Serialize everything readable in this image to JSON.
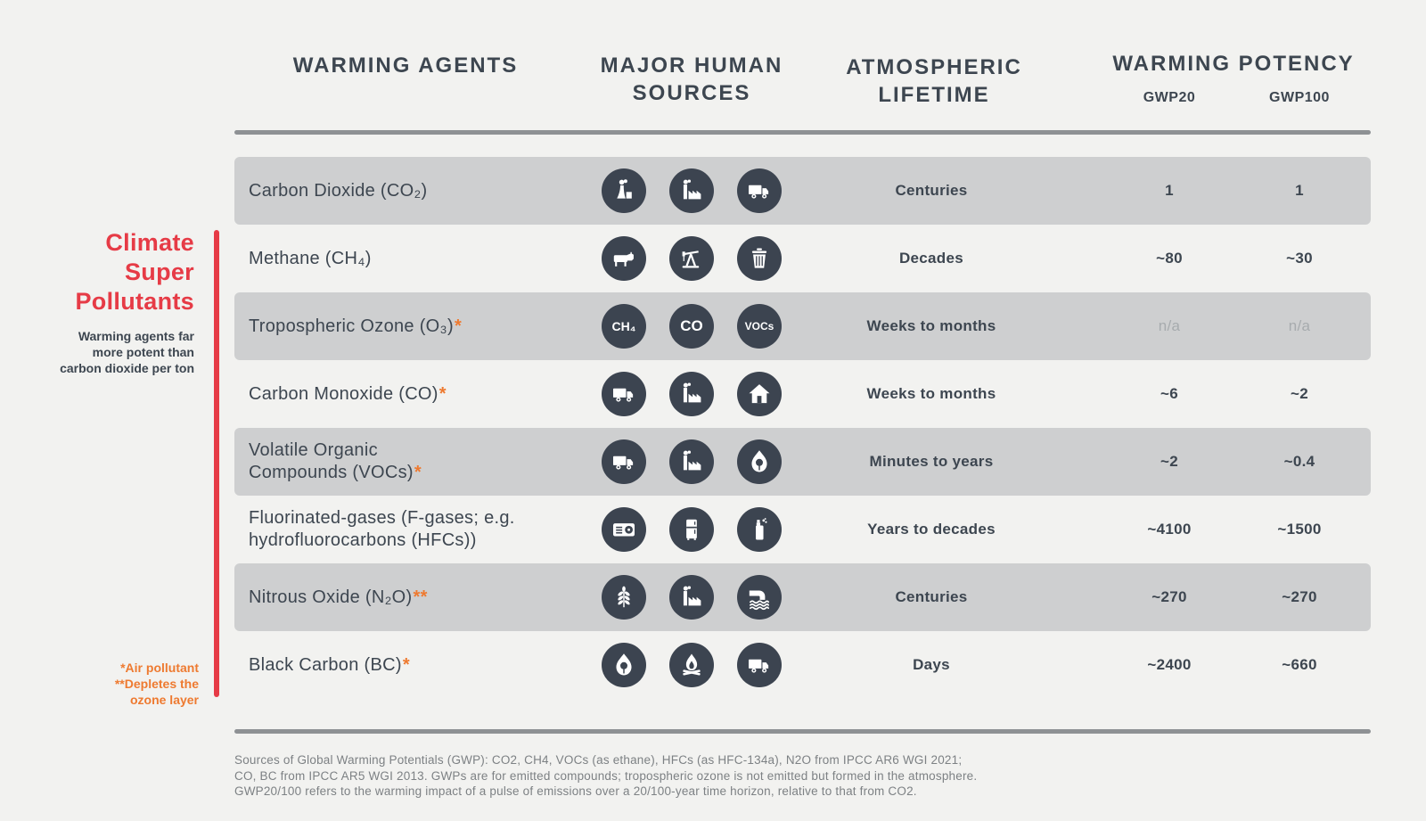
{
  "header": {
    "warming_agents": "WARMING AGENTS",
    "major_human_sources_lines": [
      "MAJOR HUMAN",
      "SOURCES"
    ],
    "atmospheric_lifetime_lines": [
      "ATMOSPHERIC",
      "LIFETIME"
    ],
    "warming_potency": "WARMING POTENCY",
    "gwp20_label": "GWP20",
    "gwp100_label": "GWP100"
  },
  "sidebar": {
    "title_lines": [
      "Climate",
      "Super",
      "Pollutants"
    ],
    "subtitle_lines": [
      "Warming agents far",
      "more potent than",
      "carbon dioxide per ton"
    ],
    "footnote_lines": [
      "*Air pollutant",
      "**Depletes the",
      "ozone layer"
    ]
  },
  "rows": [
    {
      "agent_lines": [
        "Carbon Dioxide (CO₂)"
      ],
      "note": "",
      "icons": [
        {
          "icon": "power-plant-icon"
        },
        {
          "icon": "factory-icon"
        },
        {
          "icon": "truck-icon"
        }
      ],
      "lifetime": "Centuries",
      "gwp20": "1",
      "gwp100": "1",
      "shaded": true,
      "na": false
    },
    {
      "agent_lines": [
        "Methane (CH₄)"
      ],
      "note": "",
      "icons": [
        {
          "icon": "cow-icon"
        },
        {
          "icon": "oil-pumpjack-icon"
        },
        {
          "icon": "trash-can-icon"
        }
      ],
      "lifetime": "Decades",
      "gwp20": "~80",
      "gwp100": "~30",
      "shaded": false,
      "na": false
    },
    {
      "agent_lines": [
        "Tropospheric Ozone (O₃)"
      ],
      "note": "*",
      "icons": [
        {
          "badge": "CH₄"
        },
        {
          "badge": "CO"
        },
        {
          "badge": "VOCs"
        }
      ],
      "lifetime": "Weeks to months",
      "gwp20": "n/a",
      "gwp100": "n/a",
      "shaded": true,
      "na": true
    },
    {
      "agent_lines": [
        "Carbon Monoxide (CO)"
      ],
      "note": "*",
      "icons": [
        {
          "icon": "truck-icon"
        },
        {
          "icon": "factory-icon"
        },
        {
          "icon": "house-icon"
        }
      ],
      "lifetime": "Weeks to months",
      "gwp20": "~6",
      "gwp100": "~2",
      "shaded": false,
      "na": false
    },
    {
      "agent_lines": [
        "Volatile Organic",
        "Compounds (VOCs)"
      ],
      "note": "*",
      "icons": [
        {
          "icon": "truck-icon"
        },
        {
          "icon": "factory-icon"
        },
        {
          "icon": "wildfire-icon"
        }
      ],
      "lifetime": "Minutes to years",
      "gwp20": "~2",
      "gwp100": "~0.4",
      "shaded": true,
      "na": false
    },
    {
      "agent_lines": [
        "Fluorinated-gases (F-gases; e.g.",
        "hydrofluorocarbons (HFCs))"
      ],
      "note": "",
      "icons": [
        {
          "icon": "air-conditioner-icon"
        },
        {
          "icon": "refrigerator-icon"
        },
        {
          "icon": "spray-can-icon"
        }
      ],
      "lifetime": "Years to decades",
      "gwp20": "~4100",
      "gwp100": "~1500",
      "shaded": false,
      "na": false
    },
    {
      "agent_lines": [
        "Nitrous Oxide (N₂O)"
      ],
      "note": "**",
      "icons": [
        {
          "icon": "wheat-icon"
        },
        {
          "icon": "factory-icon"
        },
        {
          "icon": "wastewater-icon"
        }
      ],
      "lifetime": "Centuries",
      "gwp20": "~270",
      "gwp100": "~270",
      "shaded": true,
      "na": false
    },
    {
      "agent_lines": [
        "Black Carbon (BC)"
      ],
      "note": "*",
      "icons": [
        {
          "icon": "wildfire-icon"
        },
        {
          "icon": "campfire-icon"
        },
        {
          "icon": "truck-icon"
        }
      ],
      "lifetime": "Days",
      "gwp20": "~2400",
      "gwp100": "~660",
      "shaded": false,
      "na": false
    }
  ],
  "footer": {
    "source_lines": [
      "Sources of Global Warming Potentials (GWP): CO2, CH4, VOCs (as ethane), HFCs (as HFC-134a), N2O from IPCC AR6 WGI 2021;",
      "CO, BC from IPCC AR5 WGI 2013. GWPs are for emitted compounds; tropospheric ozone is not emitted but formed in the atmosphere.",
      "GWP20/100 refers to the warming impact of a pulse of emissions over a 20/100-year time horizon, relative to that from CO2."
    ]
  },
  "colors": {
    "accent_red": "#e63b46",
    "accent_orange": "#ee7a30",
    "text_dark": "#3d4650",
    "band_gray": "#cecfd0",
    "icon_circle": "#3c4450",
    "muted_gray": "#a7abae",
    "source_gray": "#7d8184",
    "divider_gray": "#8e9194",
    "background": "#f2f2f0"
  },
  "chart_data": {
    "type": "table",
    "title": "Climate Super Pollutants",
    "subtitle": "Warming agents far more potent than carbon dioxide per ton",
    "columns": [
      "Warming Agents",
      "Major Human Sources",
      "Atmospheric Lifetime",
      "GWP20",
      "GWP100"
    ],
    "rows": [
      [
        "Carbon Dioxide (CO₂)",
        "power plant; factory; truck",
        "Centuries",
        "1",
        "1"
      ],
      [
        "Methane (CH₄)",
        "cow; oil pumpjack; trash can",
        "Decades",
        "~80",
        "~30"
      ],
      [
        "Tropospheric Ozone (O₃)*",
        "CH₄; CO; VOCs",
        "Weeks to months",
        "n/a",
        "n/a"
      ],
      [
        "Carbon Monoxide (CO)*",
        "truck; factory; house",
        "Weeks to months",
        "~6",
        "~2"
      ],
      [
        "Volatile Organic Compounds (VOCs)*",
        "truck; factory; wildfire",
        "Minutes to years",
        "~2",
        "~0.4"
      ],
      [
        "Fluorinated-gases (F-gases; e.g. hydrofluorocarbons (HFCs))",
        "air conditioner; refrigerator; spray can",
        "Years to decades",
        "~4100",
        "~1500"
      ],
      [
        "Nitrous Oxide (N₂O)**",
        "wheat crop; factory; wastewater outfall",
        "Centuries",
        "~270",
        "~270"
      ],
      [
        "Black Carbon (BC)*",
        "wildfire; campfire; truck",
        "Days",
        "~2400",
        "~660"
      ]
    ],
    "footnotes": [
      "*Air pollutant",
      "**Depletes the ozone layer"
    ]
  }
}
